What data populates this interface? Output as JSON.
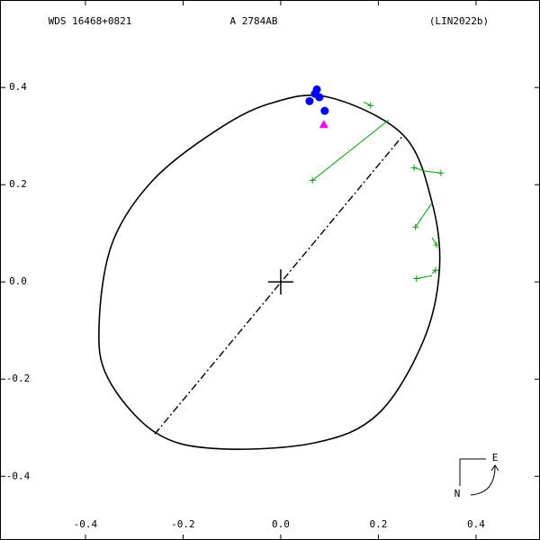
{
  "chart_data": {
    "type": "orbit",
    "title": "WDS 16468+0821",
    "subtitle": "A  2784AB",
    "reference": "(LIN2022b)",
    "xlim": [
      -0.575,
      0.531
    ],
    "ylim": [
      -0.531,
      0.58
    ],
    "xticks": [
      {
        "value": -0.4,
        "label": "-0.4"
      },
      {
        "value": -0.2,
        "label": "-0.2"
      },
      {
        "value": 0,
        "label": "0.0"
      },
      {
        "value": 0.2,
        "label": "0.2"
      },
      {
        "value": 0.4,
        "label": "0.4"
      }
    ],
    "yticks": [
      {
        "value": -0.4,
        "label": "-0.4"
      },
      {
        "value": -0.2,
        "label": "-0.2"
      },
      {
        "value": 0,
        "label": "0.0"
      },
      {
        "value": 0.2,
        "label": "0.2"
      },
      {
        "value": 0.4,
        "label": "0.4"
      }
    ],
    "orbit": {
      "color": "#000000",
      "x": [
        0.098,
        0.251,
        0.31,
        0.325,
        0.291,
        0.199,
        0.07,
        -0.133,
        -0.258,
        -0.354,
        -0.372,
        -0.345,
        -0.262,
        -0.133,
        -0.022
      ],
      "y": [
        0.38,
        0.302,
        0.163,
        0.024,
        -0.124,
        -0.272,
        -0.331,
        -0.343,
        -0.309,
        -0.198,
        -0.087,
        0.08,
        0.209,
        0.311,
        0.367
      ]
    },
    "line_of_nodes": {
      "color": "#000000",
      "x": [
        -0.258,
        0.251
      ],
      "y": [
        -0.313,
        0.302
      ]
    },
    "observations": {
      "color": "#0000ff",
      "x": [
        0.059,
        0.07,
        0.074,
        0.079,
        0.09
      ],
      "y": [
        0.372,
        0.387,
        0.396,
        0.38,
        0.352
      ]
    },
    "triangles": {
      "color": "#ff00ff",
      "x": [
        0.088
      ],
      "y": [
        0.324
      ]
    },
    "residuals": {
      "color": "#00a000",
      "x": [
        0.065,
        0.184,
        0.273,
        0.328,
        0.276,
        0.319,
        0.278,
        0.317
      ],
      "y": [
        0.209,
        0.363,
        0.235,
        0.224,
        0.113,
        0.076,
        0.007,
        0.024
      ],
      "ox": [
        0.221,
        0.17,
        0.295,
        0.295,
        0.31,
        0.31,
        0.31,
        0.31
      ],
      "oy": [
        0.333,
        0.37,
        0.228,
        0.228,
        0.163,
        0.091,
        0.013,
        0.017
      ]
    },
    "compass": {
      "east": "E",
      "north": "N"
    }
  }
}
